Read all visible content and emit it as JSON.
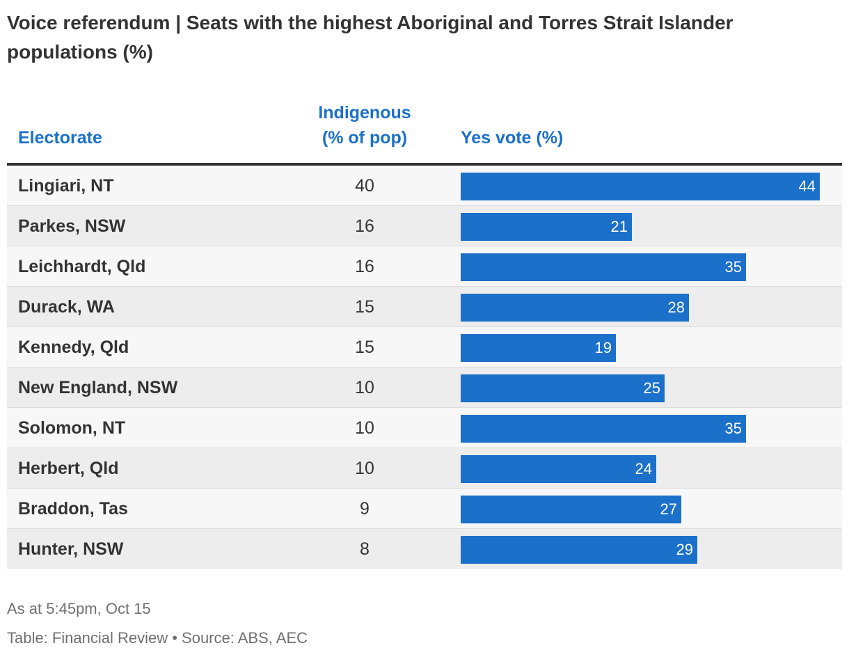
{
  "title": "Voice referendum | Seats with the highest Aboriginal and Torres Strait Islander populations (%)",
  "columns": {
    "electorate": "Electorate",
    "indigenous_line1": "Indigenous",
    "indigenous_line2": "(% of pop)",
    "yes_vote": "Yes vote (%)"
  },
  "chart_data": {
    "type": "table",
    "title": "Voice referendum | Seats with the highest Aboriginal and Torres Strait Islander populations (%)",
    "bar_color": "#1b70c9",
    "bar_max": 44,
    "rows": [
      {
        "electorate": "Lingiari, NT",
        "indigenous": "40",
        "yes_vote": "44"
      },
      {
        "electorate": "Parkes, NSW",
        "indigenous": "16",
        "yes_vote": "21"
      },
      {
        "electorate": "Leichhardt, Qld",
        "indigenous": "16",
        "yes_vote": "35"
      },
      {
        "electorate": "Durack, WA",
        "indigenous": "15",
        "yes_vote": "28"
      },
      {
        "electorate": "Kennedy, Qld",
        "indigenous": "15",
        "yes_vote": "19"
      },
      {
        "electorate": "New England, NSW",
        "indigenous": "10",
        "yes_vote": "25"
      },
      {
        "electorate": "Solomon, NT",
        "indigenous": "10",
        "yes_vote": "35"
      },
      {
        "electorate": "Herbert, Qld",
        "indigenous": "10",
        "yes_vote": "24"
      },
      {
        "electorate": "Braddon, Tas",
        "indigenous": "9",
        "yes_vote": "27"
      },
      {
        "electorate": "Hunter, NSW",
        "indigenous": "8",
        "yes_vote": "29"
      }
    ]
  },
  "notes": {
    "date": "As at 5:45pm, Oct 15",
    "source": "Table: Financial Review • Source: ABS, AEC"
  }
}
